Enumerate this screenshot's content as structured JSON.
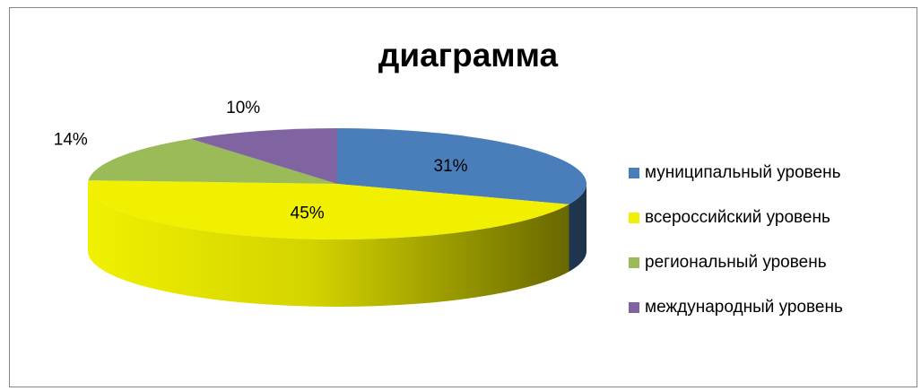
{
  "chart_data": {
    "type": "pie",
    "title": "диаграмма",
    "categories": [
      "муниципальный уровень",
      "всероссийский уровень",
      "региональный уровень",
      "международный уровень"
    ],
    "values": [
      31,
      45,
      14,
      10
    ],
    "value_labels": [
      "31%",
      "45%",
      "14%",
      "10%"
    ],
    "colors": [
      "#4a7ebb",
      "#f0f000",
      "#9bbb59",
      "#8064a2"
    ],
    "legend": "right"
  }
}
